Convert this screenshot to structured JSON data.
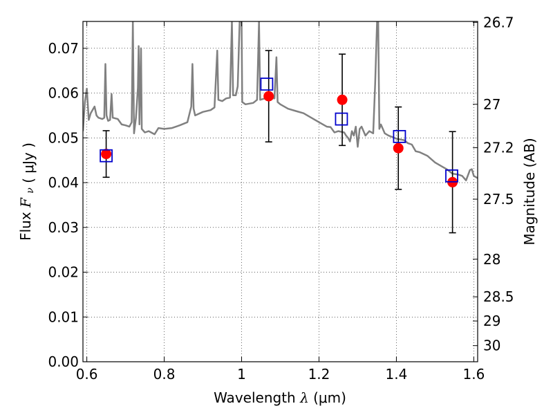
{
  "chart_data": {
    "type": "scatter",
    "xlabel": "Wavelength",
    "xlabel_symbol": "λ",
    "xlabel_unit": "(μm)",
    "ylabel": "Flux",
    "ylabel_symbol": "F",
    "ylabel_sub": "ν",
    "ylabel_unit": "( μJy )",
    "y2label": "Magnitude (AB)",
    "xlim": [
      0.59,
      1.61
    ],
    "ylim": [
      0.0,
      0.076
    ],
    "grid": true,
    "x_ticks": [
      {
        "value": 0.6,
        "label": "0.6"
      },
      {
        "value": 0.8,
        "label": "0.8"
      },
      {
        "value": 1.0,
        "label": "1"
      },
      {
        "value": 1.2,
        "label": "1.2"
      },
      {
        "value": 1.4,
        "label": "1.4"
      },
      {
        "value": 1.6,
        "label": "1.6"
      }
    ],
    "y_ticks": [
      {
        "value": 0.0,
        "label": "0.00"
      },
      {
        "value": 0.01,
        "label": "0.01"
      },
      {
        "value": 0.02,
        "label": "0.02"
      },
      {
        "value": 0.03,
        "label": "0.03"
      },
      {
        "value": 0.04,
        "label": "0.04"
      },
      {
        "value": 0.05,
        "label": "0.05"
      },
      {
        "value": 0.06,
        "label": "0.06"
      },
      {
        "value": 0.07,
        "label": "0.07"
      }
    ],
    "y2_ticks": [
      {
        "label": "26.7",
        "flux": 0.0758
      },
      {
        "label": "27",
        "flux": 0.0575
      },
      {
        "label": "27.2",
        "flux": 0.0478
      },
      {
        "label": "27.5",
        "flux": 0.0363
      },
      {
        "label": "28",
        "flux": 0.0229
      },
      {
        "label": "28.5",
        "flux": 0.0145
      },
      {
        "label": "29",
        "flux": 0.0091
      },
      {
        "label": "30",
        "flux": 0.0036
      }
    ],
    "model_spectrum": {
      "color": "#808080",
      "points": [
        [
          0.59,
          0.0515
        ],
        [
          0.595,
          0.058
        ],
        [
          0.6,
          0.061
        ],
        [
          0.605,
          0.054
        ],
        [
          0.61,
          0.0555
        ],
        [
          0.62,
          0.057
        ],
        [
          0.625,
          0.055
        ],
        [
          0.63,
          0.0545
        ],
        [
          0.64,
          0.0542
        ],
        [
          0.645,
          0.0545
        ],
        [
          0.648,
          0.0665
        ],
        [
          0.651,
          0.055
        ],
        [
          0.655,
          0.0538
        ],
        [
          0.66,
          0.054
        ],
        [
          0.664,
          0.0598
        ],
        [
          0.667,
          0.0545
        ],
        [
          0.68,
          0.0542
        ],
        [
          0.69,
          0.053
        ],
        [
          0.7,
          0.0528
        ],
        [
          0.71,
          0.0525
        ],
        [
          0.716,
          0.0535
        ],
        [
          0.719,
          0.076
        ],
        [
          0.722,
          0.051
        ],
        [
          0.727,
          0.0545
        ],
        [
          0.732,
          0.0612
        ],
        [
          0.734,
          0.0705
        ],
        [
          0.736,
          0.053
        ],
        [
          0.74,
          0.07
        ],
        [
          0.742,
          0.052
        ],
        [
          0.75,
          0.0512
        ],
        [
          0.76,
          0.0515
        ],
        [
          0.775,
          0.0508
        ],
        [
          0.785,
          0.0522
        ],
        [
          0.8,
          0.052
        ],
        [
          0.82,
          0.0522
        ],
        [
          0.84,
          0.0528
        ],
        [
          0.86,
          0.0535
        ],
        [
          0.87,
          0.057
        ],
        [
          0.873,
          0.0665
        ],
        [
          0.876,
          0.0565
        ],
        [
          0.88,
          0.055
        ],
        [
          0.9,
          0.0558
        ],
        [
          0.92,
          0.0562
        ],
        [
          0.93,
          0.0568
        ],
        [
          0.937,
          0.0695
        ],
        [
          0.94,
          0.0585
        ],
        [
          0.95,
          0.0582
        ],
        [
          0.96,
          0.0588
        ],
        [
          0.97,
          0.059
        ],
        [
          0.975,
          0.076
        ],
        [
          0.978,
          0.0595
        ],
        [
          0.985,
          0.0595
        ],
        [
          0.99,
          0.0615
        ],
        [
          0.995,
          0.076
        ],
        [
          1.0,
          0.076
        ],
        [
          1.0015,
          0.058
        ],
        [
          1.01,
          0.0575
        ],
        [
          1.03,
          0.0578
        ],
        [
          1.04,
          0.0585
        ],
        [
          1.045,
          0.076
        ],
        [
          1.048,
          0.0585
        ],
        [
          1.06,
          0.0588
        ],
        [
          1.07,
          0.059
        ],
        [
          1.085,
          0.0588
        ],
        [
          1.09,
          0.068
        ],
        [
          1.093,
          0.058
        ],
        [
          1.1,
          0.0575
        ],
        [
          1.12,
          0.0565
        ],
        [
          1.14,
          0.056
        ],
        [
          1.16,
          0.0555
        ],
        [
          1.18,
          0.0545
        ],
        [
          1.2,
          0.0535
        ],
        [
          1.22,
          0.0525
        ],
        [
          1.23,
          0.0524
        ],
        [
          1.24,
          0.0512
        ],
        [
          1.25,
          0.0515
        ],
        [
          1.265,
          0.0512
        ],
        [
          1.27,
          0.0505
        ],
        [
          1.275,
          0.05
        ],
        [
          1.28,
          0.0492
        ],
        [
          1.285,
          0.0515
        ],
        [
          1.29,
          0.0505
        ],
        [
          1.295,
          0.0525
        ],
        [
          1.3,
          0.048
        ],
        [
          1.305,
          0.052
        ],
        [
          1.31,
          0.0525
        ],
        [
          1.32,
          0.0505
        ],
        [
          1.33,
          0.0515
        ],
        [
          1.34,
          0.051
        ],
        [
          1.345,
          0.062
        ],
        [
          1.35,
          0.076
        ],
        [
          1.353,
          0.076
        ],
        [
          1.356,
          0.052
        ],
        [
          1.36,
          0.053
        ],
        [
          1.37,
          0.051
        ],
        [
          1.38,
          0.0505
        ],
        [
          1.395,
          0.05
        ],
        [
          1.4,
          0.0498
        ],
        [
          1.42,
          0.0495
        ],
        [
          1.43,
          0.0488
        ],
        [
          1.44,
          0.0485
        ],
        [
          1.45,
          0.047
        ],
        [
          1.46,
          0.0468
        ],
        [
          1.48,
          0.046
        ],
        [
          1.5,
          0.0445
        ],
        [
          1.51,
          0.044
        ],
        [
          1.52,
          0.0435
        ],
        [
          1.53,
          0.043
        ],
        [
          1.545,
          0.042
        ],
        [
          1.56,
          0.0418
        ],
        [
          1.57,
          0.0415
        ],
        [
          1.58,
          0.0405
        ],
        [
          1.59,
          0.0428
        ],
        [
          1.595,
          0.043
        ],
        [
          1.6,
          0.0415
        ],
        [
          1.61,
          0.041
        ]
      ]
    },
    "observed": {
      "color": "#ff0000",
      "marker": "circle",
      "points": [
        {
          "x": 0.65,
          "y": 0.0464,
          "yerr_low": 0.0052,
          "yerr_high": 0.0052
        },
        {
          "x": 1.07,
          "y": 0.0593,
          "yerr_low": 0.0102,
          "yerr_high": 0.0102
        },
        {
          "x": 1.26,
          "y": 0.0585,
          "yerr_low": 0.0102,
          "yerr_high": 0.0102
        },
        {
          "x": 1.405,
          "y": 0.0477,
          "yerr_low": 0.0092,
          "yerr_high": 0.0092
        },
        {
          "x": 1.545,
          "y": 0.0401,
          "yerr_low": 0.0113,
          "yerr_high": 0.0113
        }
      ]
    },
    "model_photometry": {
      "color": "#0000cc",
      "marker": "open-square",
      "points": [
        {
          "x": 0.65,
          "y": 0.046
        },
        {
          "x": 1.065,
          "y": 0.062
        },
        {
          "x": 1.258,
          "y": 0.0542
        },
        {
          "x": 1.408,
          "y": 0.0503
        },
        {
          "x": 1.543,
          "y": 0.0415
        }
      ]
    }
  }
}
